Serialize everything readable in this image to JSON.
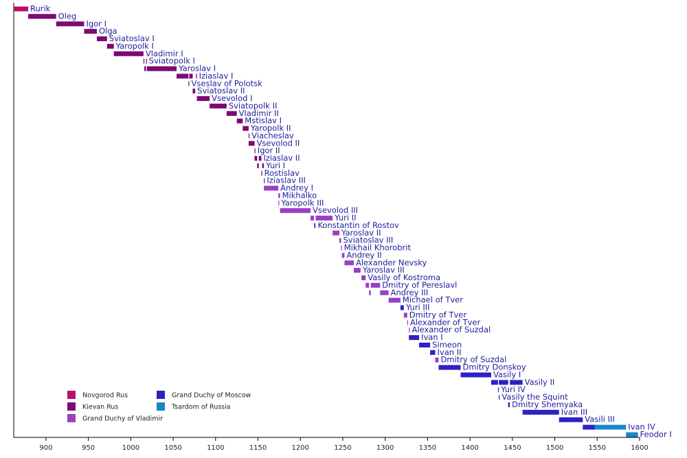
{
  "chart_data": {
    "type": "timeline",
    "xlim": [
      862,
      1600
    ],
    "xticks": [
      900,
      950,
      1000,
      1050,
      1100,
      1150,
      1200,
      1250,
      1300,
      1350,
      1400,
      1450,
      1500,
      1550,
      1600
    ],
    "states": [
      {
        "name": "Novgorod Rus",
        "color": "#b8106c"
      },
      {
        "name": "Kievan Rus",
        "color": "#7c0a74"
      },
      {
        "name": "Grand Duchy of Vladimir",
        "color": "#9a3fc6"
      },
      {
        "name": "Grand Duchy of Moscow",
        "color": "#2c22c4"
      },
      {
        "name": "Tsardom of Russia",
        "color": "#1a88c8"
      }
    ],
    "rulers": [
      {
        "name": "Rurik",
        "reigns": [
          {
            "from": 862,
            "to": 879,
            "state": 0
          }
        ]
      },
      {
        "name": "Oleg",
        "reigns": [
          {
            "from": 879,
            "to": 912,
            "state": 1
          }
        ]
      },
      {
        "name": "Igor I",
        "reigns": [
          {
            "from": 912,
            "to": 945,
            "state": 1
          }
        ]
      },
      {
        "name": "Olga",
        "reigns": [
          {
            "from": 945,
            "to": 960,
            "state": 1
          }
        ]
      },
      {
        "name": "Sviatoslav I",
        "reigns": [
          {
            "from": 960,
            "to": 972,
            "state": 1
          }
        ]
      },
      {
        "name": "Yaropolk I",
        "reigns": [
          {
            "from": 972,
            "to": 980,
            "state": 1
          }
        ]
      },
      {
        "name": "Vladimir I",
        "reigns": [
          {
            "from": 980,
            "to": 1015,
            "state": 1
          }
        ]
      },
      {
        "name": "Sviatopolk I",
        "reigns": [
          {
            "from": 1015,
            "to": 1016,
            "state": 1
          },
          {
            "from": 1018,
            "to": 1019,
            "state": 1
          }
        ]
      },
      {
        "name": "Yaroslav I",
        "reigns": [
          {
            "from": 1016,
            "to": 1018,
            "state": 1
          },
          {
            "from": 1019,
            "to": 1054,
            "state": 1
          }
        ]
      },
      {
        "name": "Iziaslav I",
        "reigns": [
          {
            "from": 1054,
            "to": 1068,
            "state": 1
          },
          {
            "from": 1069,
            "to": 1073,
            "state": 1
          },
          {
            "from": 1077,
            "to": 1078,
            "state": 1
          }
        ]
      },
      {
        "name": "Vseslav of Polotsk",
        "reigns": [
          {
            "from": 1068,
            "to": 1069,
            "state": 1
          }
        ]
      },
      {
        "name": "Sviatoslav II",
        "reigns": [
          {
            "from": 1073,
            "to": 1076,
            "state": 1
          }
        ]
      },
      {
        "name": "Vsevolod I",
        "reigns": [
          {
            "from": 1078,
            "to": 1093,
            "state": 1
          }
        ]
      },
      {
        "name": "Sviatopolk II",
        "reigns": [
          {
            "from": 1093,
            "to": 1113,
            "state": 1
          }
        ]
      },
      {
        "name": "Vladimir II",
        "reigns": [
          {
            "from": 1113,
            "to": 1125,
            "state": 1
          }
        ]
      },
      {
        "name": "Mstislav I",
        "reigns": [
          {
            "from": 1125,
            "to": 1132,
            "state": 1
          }
        ]
      },
      {
        "name": "Yaropolk II",
        "reigns": [
          {
            "from": 1132,
            "to": 1139,
            "state": 1
          }
        ]
      },
      {
        "name": "Viacheslav",
        "reigns": [
          {
            "from": 1139,
            "to": 1140,
            "state": 1
          }
        ]
      },
      {
        "name": "Vsevolod II",
        "reigns": [
          {
            "from": 1139,
            "to": 1146,
            "state": 1
          }
        ]
      },
      {
        "name": "Igor II",
        "reigns": [
          {
            "from": 1146,
            "to": 1147,
            "state": 1
          }
        ]
      },
      {
        "name": "Iziaslav II",
        "reigns": [
          {
            "from": 1146,
            "to": 1149,
            "state": 1
          },
          {
            "from": 1151,
            "to": 1154,
            "state": 1
          }
        ]
      },
      {
        "name": "Yuri I",
        "reigns": [
          {
            "from": 1149,
            "to": 1151,
            "state": 1
          },
          {
            "from": 1155,
            "to": 1157,
            "state": 1
          }
        ]
      },
      {
        "name": "Rostislav",
        "reigns": [
          {
            "from": 1154,
            "to": 1155,
            "state": 1
          }
        ]
      },
      {
        "name": "Iziaslav III",
        "reigns": [
          {
            "from": 1157,
            "to": 1158,
            "state": 1
          }
        ]
      },
      {
        "name": "Andrey I",
        "reigns": [
          {
            "from": 1157,
            "to": 1174,
            "state": 2
          }
        ]
      },
      {
        "name": "Mikhalko",
        "reigns": [
          {
            "from": 1174,
            "to": 1176,
            "state": 2
          }
        ]
      },
      {
        "name": "Yaropolk III",
        "reigns": [
          {
            "from": 1174,
            "to": 1175,
            "state": 2
          }
        ]
      },
      {
        "name": "Vsevolod III",
        "reigns": [
          {
            "from": 1176,
            "to": 1212,
            "state": 2
          }
        ]
      },
      {
        "name": "Yuri II",
        "reigns": [
          {
            "from": 1212,
            "to": 1216,
            "state": 2
          },
          {
            "from": 1218,
            "to": 1238,
            "state": 2
          }
        ]
      },
      {
        "name": "Konstantin of Rostov",
        "reigns": [
          {
            "from": 1216,
            "to": 1218,
            "state": 2
          }
        ]
      },
      {
        "name": "Yaroslav II",
        "reigns": [
          {
            "from": 1238,
            "to": 1246,
            "state": 2
          }
        ]
      },
      {
        "name": "Sviatoslav III",
        "reigns": [
          {
            "from": 1246,
            "to": 1248,
            "state": 2
          }
        ]
      },
      {
        "name": "Mikhail Khorobrit",
        "reigns": [
          {
            "from": 1248,
            "to": 1249,
            "state": 2
          }
        ]
      },
      {
        "name": "Andrey II",
        "reigns": [
          {
            "from": 1249,
            "to": 1252,
            "state": 2
          }
        ]
      },
      {
        "name": "Alexander Nevsky",
        "reigns": [
          {
            "from": 1252,
            "to": 1263,
            "state": 2
          }
        ]
      },
      {
        "name": "Yaroslav III",
        "reigns": [
          {
            "from": 1263,
            "to": 1271,
            "state": 2
          }
        ]
      },
      {
        "name": "Vasily of Kostroma",
        "reigns": [
          {
            "from": 1272,
            "to": 1277,
            "state": 2
          }
        ]
      },
      {
        "name": "Dmitry of Pereslavl",
        "reigns": [
          {
            "from": 1277,
            "to": 1281,
            "state": 2
          },
          {
            "from": 1283,
            "to": 1294,
            "state": 2
          }
        ]
      },
      {
        "name": "Andrey III",
        "reigns": [
          {
            "from": 1281,
            "to": 1283,
            "state": 2
          },
          {
            "from": 1294,
            "to": 1304,
            "state": 2
          }
        ]
      },
      {
        "name": "Michael of Tver",
        "reigns": [
          {
            "from": 1304,
            "to": 1318,
            "state": 2
          }
        ]
      },
      {
        "name": "Yuri III",
        "reigns": [
          {
            "from": 1318,
            "to": 1322,
            "state": 3
          }
        ]
      },
      {
        "name": "Dmitry of Tver",
        "reigns": [
          {
            "from": 1322,
            "to": 1326,
            "state": 2
          }
        ]
      },
      {
        "name": "Alexander of Tver",
        "reigns": [
          {
            "from": 1326,
            "to": 1327,
            "state": 2
          }
        ]
      },
      {
        "name": "Alexander of Suzdal",
        "reigns": [
          {
            "from": 1328,
            "to": 1329,
            "state": 2
          }
        ]
      },
      {
        "name": "Ivan I",
        "reigns": [
          {
            "from": 1328,
            "to": 1340,
            "state": 3
          }
        ]
      },
      {
        "name": "Simeon",
        "reigns": [
          {
            "from": 1340,
            "to": 1353,
            "state": 3
          }
        ]
      },
      {
        "name": "Ivan II",
        "reigns": [
          {
            "from": 1353,
            "to": 1359,
            "state": 3
          }
        ]
      },
      {
        "name": "Dmitry of Suzdal",
        "reigns": [
          {
            "from": 1359,
            "to": 1363,
            "state": 2
          }
        ]
      },
      {
        "name": "Dmitry Donskoy",
        "reigns": [
          {
            "from": 1363,
            "to": 1389,
            "state": 3
          }
        ]
      },
      {
        "name": "Vasily I",
        "reigns": [
          {
            "from": 1389,
            "to": 1425,
            "state": 3
          }
        ]
      },
      {
        "name": "Vasily II",
        "reigns": [
          {
            "from": 1425,
            "to": 1433,
            "state": 3
          },
          {
            "from": 1434,
            "to": 1445,
            "state": 3
          },
          {
            "from": 1447,
            "to": 1462,
            "state": 3
          }
        ]
      },
      {
        "name": "Yuri IV",
        "reigns": [
          {
            "from": 1433,
            "to": 1434,
            "state": 3
          }
        ]
      },
      {
        "name": "Vasily the Squint",
        "reigns": [
          {
            "from": 1434,
            "to": 1435,
            "state": 3
          }
        ]
      },
      {
        "name": "Dmitry Shemyaka",
        "reigns": [
          {
            "from": 1445,
            "to": 1447,
            "state": 3
          }
        ]
      },
      {
        "name": "Ivan III",
        "reigns": [
          {
            "from": 1462,
            "to": 1505,
            "state": 3
          }
        ]
      },
      {
        "name": "Vasili III",
        "reigns": [
          {
            "from": 1505,
            "to": 1533,
            "state": 3
          }
        ]
      },
      {
        "name": "Ivan IV",
        "reigns": [
          {
            "from": 1533,
            "to": 1547,
            "state": 3
          },
          {
            "from": 1547,
            "to": 1584,
            "state": 4
          }
        ]
      },
      {
        "name": "Feodor I",
        "reigns": [
          {
            "from": 1584,
            "to": 1598,
            "state": 4
          }
        ]
      }
    ]
  }
}
